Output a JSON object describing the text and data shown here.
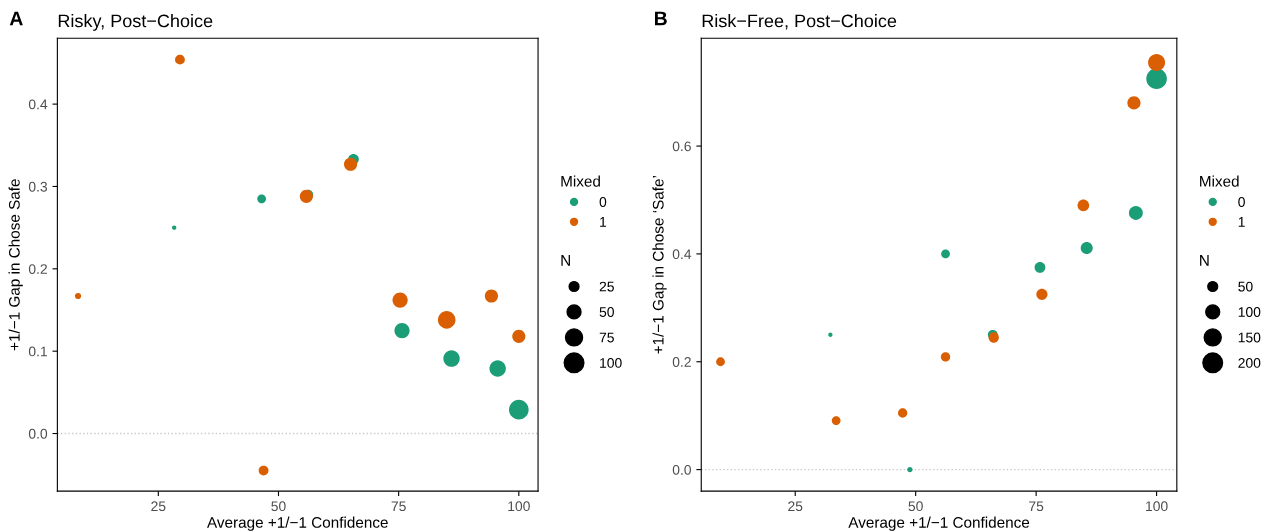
{
  "chart_data": [
    {
      "type": "bubble",
      "title": "Risky, Post−Choice",
      "annotations": [
        "A"
      ],
      "xlabel": "Average +1/−1 Confidence",
      "ylabel": "+1/−1 Gap in Chose Safe",
      "legend_title": [
        "Mixed",
        "N"
      ],
      "legend": "right",
      "grid": false,
      "marker": "circle",
      "xlim": [
        4,
        104
      ],
      "xticks": [
        25,
        50,
        75,
        100
      ],
      "ylim": [
        -0.07,
        0.48
      ],
      "yticks": [
        {
          "value": 0,
          "label": "0.0"
        },
        0.1,
        0.2,
        0.3,
        0.4
      ],
      "size_legend": [
        25,
        50,
        75,
        100
      ],
      "ref_lines": [
        {
          "axis": "y",
          "value": 0,
          "color": "#c8c8c8",
          "line_style": "dotted"
        }
      ],
      "series": [
        {
          "name": "0",
          "color": "#1b9e77",
          "x": [
            28.3,
            46.5,
            56.2,
            65.6,
            75.7,
            86.0,
            95.6,
            100
          ],
          "values": [
            0.25,
            0.285,
            0.29,
            0.333,
            0.125,
            0.091,
            0.079,
            0.029
          ],
          "sizes": [
            5,
            20,
            25,
            30,
            60,
            70,
            70,
            100
          ]
        },
        {
          "name": "1",
          "color": "#d95f02",
          "x": [
            8.3,
            29.5,
            46.9,
            55.8,
            65.0,
            75.3,
            85.0,
            94.3,
            100
          ],
          "values": [
            0.167,
            0.454,
            -0.045,
            0.288,
            0.327,
            0.162,
            0.138,
            0.167,
            0.118
          ],
          "sizes": [
            10,
            25,
            25,
            45,
            45,
            60,
            80,
            45,
            45
          ]
        }
      ]
    },
    {
      "type": "bubble",
      "title": "Risk−Free, Post−Choice",
      "annotations": [
        "B"
      ],
      "xlabel": "Average +1/−1 Confidence",
      "ylabel": "+1/−1 Gap in Chose ‘Safe’",
      "legend_title": [
        "Mixed",
        "N"
      ],
      "legend": "right",
      "grid": false,
      "marker": "circle",
      "xlim": [
        5.5,
        104.2
      ],
      "xticks": [
        25,
        50,
        75,
        100
      ],
      "ylim": [
        -0.04,
        0.8
      ],
      "yticks": [
        {
          "value": 0,
          "label": "0.0"
        },
        0.2,
        0.4,
        0.6
      ],
      "size_legend": [
        50,
        100,
        150,
        200
      ],
      "ref_lines": [
        {
          "axis": "y",
          "value": 0,
          "color": "#c8c8c8",
          "line_style": "dotted"
        }
      ],
      "series": [
        {
          "name": "0",
          "color": "#1b9e77",
          "x": [
            32.3,
            48.8,
            56.2,
            66.0,
            75.8,
            85.5,
            95.7,
            100
          ],
          "values": [
            0.25,
            0.0,
            0.4,
            0.25,
            0.375,
            0.411,
            0.476,
            0.725
          ],
          "sizes": [
            10,
            15,
            40,
            50,
            60,
            75,
            100,
            220
          ]
        },
        {
          "name": "1",
          "color": "#d95f02",
          "x": [
            9.5,
            33.5,
            47.3,
            56.2,
            66.2,
            76.2,
            84.8,
            95.3,
            100
          ],
          "values": [
            0.2,
            0.091,
            0.105,
            0.209,
            0.245,
            0.325,
            0.49,
            0.68,
            0.755
          ],
          "sizes": [
            40,
            40,
            45,
            45,
            55,
            65,
            70,
            90,
            150
          ]
        }
      ]
    }
  ]
}
